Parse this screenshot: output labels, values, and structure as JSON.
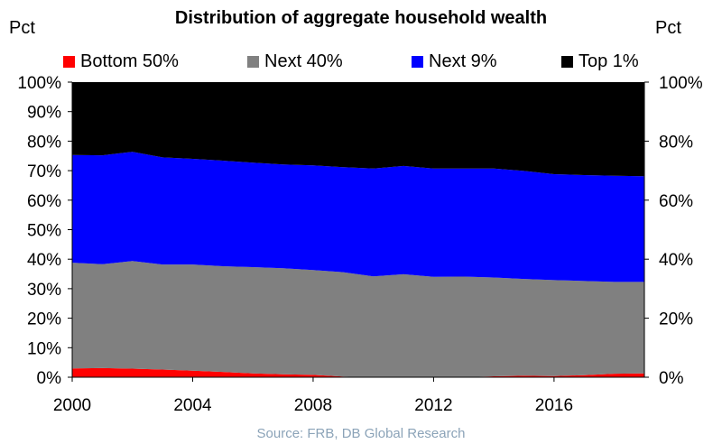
{
  "chart_data": {
    "type": "area",
    "stacked": true,
    "title": "Distribution of aggregate household wealth",
    "ylabel_left": "Pct",
    "ylabel_right": "Pct",
    "source": "Source: FRB, DB Global Research",
    "xlim": [
      2000,
      2019
    ],
    "ylim": [
      0,
      100
    ],
    "x": [
      2000,
      2001,
      2002,
      2003,
      2004,
      2005,
      2006,
      2007,
      2008,
      2009,
      2010,
      2011,
      2012,
      2013,
      2014,
      2015,
      2016,
      2017,
      2018,
      2019
    ],
    "series": [
      {
        "name": "Bottom 50%",
        "color": "#ff0000",
        "values": [
          3.0,
          3.1,
          2.9,
          2.6,
          2.2,
          1.8,
          1.3,
          1.0,
          0.8,
          0.2,
          0.0,
          0.0,
          0.0,
          0.0,
          0.3,
          0.5,
          0.4,
          0.7,
          1.2,
          1.3
        ]
      },
      {
        "name": "Next 40%",
        "color": "#808080",
        "values": [
          35.8,
          35.2,
          36.5,
          35.6,
          36.0,
          35.8,
          36.0,
          35.9,
          35.5,
          35.4,
          34.2,
          34.9,
          34.0,
          34.1,
          33.5,
          32.8,
          32.5,
          31.9,
          31.1,
          31.0
        ]
      },
      {
        "name": "Next 9%",
        "color": "#0000ff",
        "values": [
          36.5,
          36.9,
          37.0,
          36.3,
          35.8,
          35.8,
          35.4,
          35.2,
          35.5,
          35.6,
          36.5,
          36.7,
          36.7,
          36.6,
          36.9,
          36.6,
          35.9,
          35.9,
          36.0,
          35.8
        ]
      },
      {
        "name": "Top 1%",
        "color": "#000000",
        "values": [
          24.7,
          24.8,
          23.6,
          25.5,
          26.0,
          26.6,
          27.3,
          27.9,
          28.2,
          28.8,
          29.3,
          28.4,
          29.3,
          29.3,
          29.3,
          30.1,
          31.2,
          31.5,
          31.7,
          31.9
        ]
      }
    ],
    "x_ticks": [
      {
        "value": 2000,
        "label": "2000"
      },
      {
        "value": 2004,
        "label": "2004"
      },
      {
        "value": 2008,
        "label": "2008"
      },
      {
        "value": 2012,
        "label": "2012"
      },
      {
        "value": 2016,
        "label": "2016"
      }
    ],
    "y_ticks_left": [
      {
        "value": 0,
        "label": "0%"
      },
      {
        "value": 10,
        "label": "10%"
      },
      {
        "value": 20,
        "label": "20%"
      },
      {
        "value": 30,
        "label": "30%"
      },
      {
        "value": 40,
        "label": "40%"
      },
      {
        "value": 50,
        "label": "50%"
      },
      {
        "value": 60,
        "label": "60%"
      },
      {
        "value": 70,
        "label": "70%"
      },
      {
        "value": 80,
        "label": "80%"
      },
      {
        "value": 90,
        "label": "90%"
      },
      {
        "value": 100,
        "label": "100%"
      }
    ],
    "y_ticks_right": [
      {
        "value": 0,
        "label": "0%"
      },
      {
        "value": 20,
        "label": "20%"
      },
      {
        "value": 40,
        "label": "40%"
      },
      {
        "value": 60,
        "label": "60%"
      },
      {
        "value": 80,
        "label": "80%"
      },
      {
        "value": 100,
        "label": "100%"
      }
    ],
    "legend_position": "top",
    "grid": false
  }
}
